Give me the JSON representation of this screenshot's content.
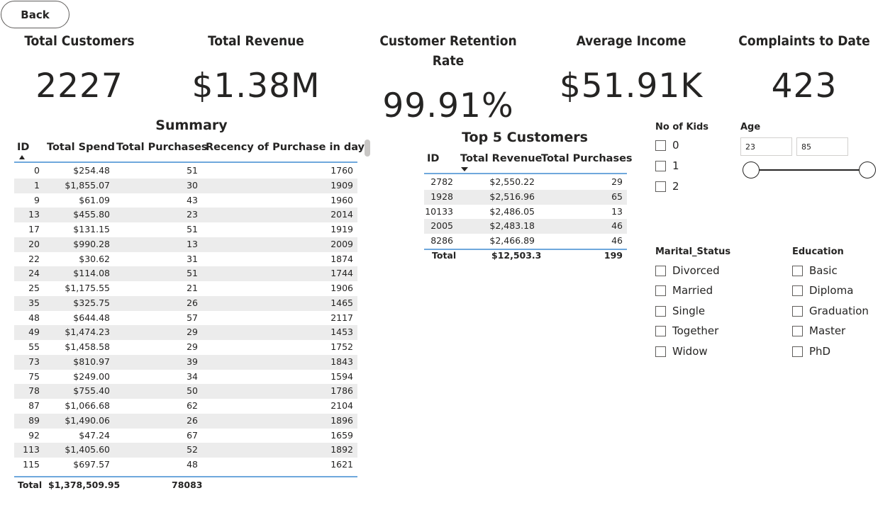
{
  "back_label": "Back",
  "kpis": [
    {
      "label": "Total Customers",
      "value": "2227"
    },
    {
      "label": "Total Revenue",
      "value": "$1.38M"
    },
    {
      "label": "Customer Retention Rate",
      "value": "99.91%"
    },
    {
      "label": "Average Income",
      "value": "$51.91K"
    },
    {
      "label": "Complaints to Date",
      "value": "423"
    }
  ],
  "summary": {
    "title": "Summary",
    "columns": [
      "ID",
      "Total Spend",
      "Total Purchases",
      "Recency of Purchase in days"
    ],
    "rows": [
      [
        "0",
        "$254.48",
        "51",
        "1760"
      ],
      [
        "1",
        "$1,855.07",
        "30",
        "1909"
      ],
      [
        "9",
        "$61.09",
        "43",
        "1960"
      ],
      [
        "13",
        "$455.80",
        "23",
        "2014"
      ],
      [
        "17",
        "$131.15",
        "51",
        "1919"
      ],
      [
        "20",
        "$990.28",
        "13",
        "2009"
      ],
      [
        "22",
        "$30.62",
        "31",
        "1874"
      ],
      [
        "24",
        "$114.08",
        "51",
        "1744"
      ],
      [
        "25",
        "$1,175.55",
        "21",
        "1906"
      ],
      [
        "35",
        "$325.75",
        "26",
        "1465"
      ],
      [
        "48",
        "$644.48",
        "57",
        "2117"
      ],
      [
        "49",
        "$1,474.23",
        "29",
        "1453"
      ],
      [
        "55",
        "$1,458.58",
        "29",
        "1752"
      ],
      [
        "73",
        "$810.97",
        "39",
        "1843"
      ],
      [
        "75",
        "$249.00",
        "34",
        "1594"
      ],
      [
        "78",
        "$755.40",
        "50",
        "1786"
      ],
      [
        "87",
        "$1,066.68",
        "62",
        "2104"
      ],
      [
        "89",
        "$1,490.06",
        "26",
        "1896"
      ],
      [
        "92",
        "$47.24",
        "67",
        "1659"
      ],
      [
        "113",
        "$1,405.60",
        "52",
        "1892"
      ],
      [
        "115",
        "$697.57",
        "48",
        "1621"
      ]
    ],
    "total": [
      "Total",
      "$1,378,509.95",
      "78083",
      ""
    ]
  },
  "top5": {
    "title": "Top 5 Customers",
    "columns": [
      "ID",
      "Total Revenue",
      "Total Purchases"
    ],
    "rows": [
      [
        "2782",
        "$2,550.22",
        "29"
      ],
      [
        "1928",
        "$2,516.96",
        "65"
      ],
      [
        "10133",
        "$2,486.05",
        "13"
      ],
      [
        "2005",
        "$2,483.18",
        "46"
      ],
      [
        "8286",
        "$2,466.89",
        "46"
      ]
    ],
    "total": [
      "Total",
      "$12,503.3",
      "199"
    ]
  },
  "kids_slicer": {
    "title": "No of Kids",
    "options": [
      "0",
      "1",
      "2"
    ]
  },
  "age_slicer": {
    "title": "Age",
    "min": "23",
    "max": "85"
  },
  "marital_slicer": {
    "title": "Marital_Status",
    "options": [
      "Divorced",
      "Married",
      "Single",
      "Together",
      "Widow"
    ]
  },
  "education_slicer": {
    "title": "Education",
    "options": [
      "Basic",
      "Diploma",
      "Graduation",
      "Master",
      "PhD"
    ]
  }
}
